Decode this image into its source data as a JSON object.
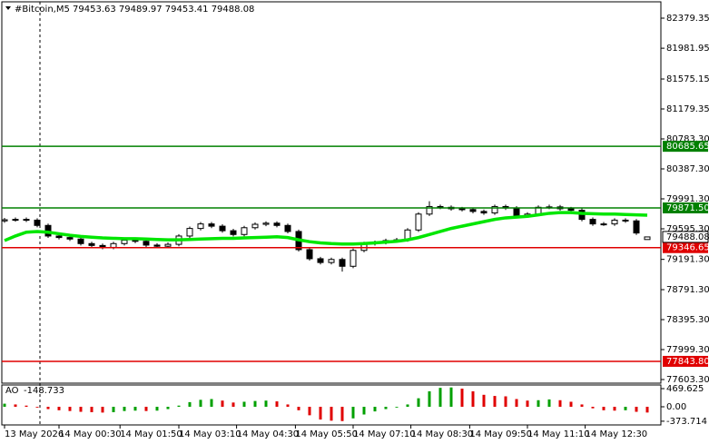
{
  "chart_data": [
    {
      "type": "candlestick",
      "title": "#Bitcoin,M5 79453.63 79489.97 79453.41 79488.08",
      "open": [
        79700,
        79715,
        79720,
        79710,
        79640,
        79500,
        79480,
        79460,
        79400,
        79375,
        79350,
        79400,
        79445,
        79430,
        79380,
        79365,
        79390,
        79500,
        79600,
        79660,
        79630,
        79570,
        79520,
        79610,
        79655,
        79670,
        79640,
        79560,
        79320,
        79200,
        79150,
        79190,
        79100,
        79310,
        79400,
        79415,
        79440,
        79450,
        79580,
        79790,
        79890,
        79880,
        79860,
        79850,
        79825,
        79805,
        79890,
        79870,
        79770,
        79790,
        79880,
        79885,
        79860,
        79840,
        79720,
        79660,
        79660,
        79710,
        79700,
        79453.63
      ],
      "high": [
        79740,
        79745,
        79745,
        79735,
        79665,
        79525,
        79505,
        79485,
        79425,
        79400,
        79425,
        79470,
        79470,
        79455,
        79405,
        79415,
        79525,
        79625,
        79685,
        79685,
        79655,
        79595,
        79635,
        79680,
        79695,
        79695,
        79665,
        79585,
        79345,
        79225,
        79215,
        79215,
        79335,
        79425,
        79440,
        79465,
        79475,
        79605,
        79815,
        79960,
        79915,
        79905,
        79885,
        79875,
        79850,
        79915,
        79915,
        79895,
        79815,
        79905,
        79915,
        79910,
        79885,
        79865,
        79745,
        79685,
        79735,
        79735,
        79725,
        79489.97
      ],
      "low": [
        79675,
        79690,
        79685,
        79615,
        79475,
        79455,
        79435,
        79375,
        79350,
        79325,
        79325,
        79375,
        79405,
        79355,
        79340,
        79340,
        79365,
        79475,
        79575,
        79605,
        79545,
        79495,
        79495,
        79585,
        79630,
        79615,
        79535,
        79295,
        79175,
        79125,
        79125,
        79030,
        79075,
        79285,
        79375,
        79390,
        79415,
        79425,
        79555,
        79765,
        79855,
        79835,
        79825,
        79800,
        79780,
        79780,
        79845,
        79745,
        79745,
        79765,
        79855,
        79835,
        79815,
        79695,
        79635,
        79635,
        79635,
        79675,
        79515,
        79453.41
      ],
      "close": [
        79715,
        79720,
        79710,
        79640,
        79500,
        79480,
        79460,
        79400,
        79375,
        79350,
        79400,
        79445,
        79430,
        79380,
        79365,
        79390,
        79500,
        79600,
        79660,
        79630,
        79570,
        79520,
        79610,
        79655,
        79670,
        79640,
        79560,
        79320,
        79200,
        79150,
        79190,
        79100,
        79310,
        79400,
        79415,
        79440,
        79450,
        79580,
        79790,
        79890,
        79880,
        79860,
        79850,
        79825,
        79805,
        79890,
        79870,
        79770,
        79790,
        79880,
        79885,
        79860,
        79840,
        79720,
        79660,
        79660,
        79710,
        79700,
        79540,
        79488.08
      ],
      "color": "#000000",
      "ma": {
        "values": [
          79440,
          79500,
          79550,
          79560,
          79550,
          79530,
          79510,
          79495,
          79485,
          79475,
          79470,
          79465,
          79465,
          79460,
          79455,
          79450,
          79450,
          79455,
          79460,
          79465,
          79470,
          79470,
          79475,
          79480,
          79485,
          79490,
          79480,
          79450,
          79425,
          79410,
          79400,
          79395,
          79395,
          79400,
          79410,
          79420,
          79430,
          79450,
          79480,
          79520,
          79560,
          79600,
          79630,
          79660,
          79690,
          79720,
          79740,
          79750,
          79760,
          79780,
          79800,
          79810,
          79810,
          79800,
          79795,
          79790,
          79790,
          79785,
          79780,
          79775
        ],
        "color": "#00e600"
      },
      "levels": {
        "values": [
          80685.65,
          79871.5,
          79346.65,
          77843.8
        ],
        "value_labels": [
          "80685.65",
          "79871.50",
          "79346.65",
          "77843.80"
        ],
        "colors": [
          "#008000",
          "#008000",
          "#e00000",
          "#e00000"
        ]
      },
      "ylim": [
        77555.35,
        82619.35
      ],
      "yticks": [
        82379.35,
        81981.95,
        81575.15,
        81179.35,
        {
          "value": 80783.3,
          "label": "80783.30"
        },
        {
          "value": 80387.3,
          "label": "80387.30"
        },
        {
          "value": 79991.3,
          "label": "79991.30"
        },
        {
          "value": 79595.3,
          "label": "79595.30"
        },
        {
          "value": 79191.3,
          "label": "79191.30"
        },
        {
          "value": 78791.3,
          "label": "78791.30"
        },
        {
          "value": 78395.3,
          "label": "78395.30"
        },
        {
          "value": 77999.3,
          "label": "77999.30"
        },
        {
          "value": 77603.3,
          "label": "77603.30"
        }
      ],
      "xlim": [
        -0.25,
        60.25
      ],
      "xticks": [
        {
          "value": 0,
          "label": "13 May 2026"
        },
        {
          "value": 5,
          "label": "14 May 00:30"
        },
        {
          "value": 10.6,
          "label": "14 May 01:50"
        },
        {
          "value": 16,
          "label": "14 May 03:10"
        },
        {
          "value": 21.3,
          "label": "14 May 04:30"
        },
        {
          "value": 26.7,
          "label": "14 May 05:50"
        },
        {
          "value": 32,
          "label": "14 May 07:10"
        },
        {
          "value": 37.3,
          "label": "14 May 08:30"
        },
        {
          "value": 42.7,
          "label": "14 May 09:50"
        },
        {
          "value": 48,
          "label": "14 May 11:10"
        },
        {
          "value": 53.3,
          "label": "14 May 12:30"
        }
      ]
    },
    {
      "type": "bar",
      "name": "AO",
      "values": [
        80,
        60,
        30,
        -20,
        -60,
        -90,
        -110,
        -130,
        -140,
        -150,
        -140,
        -110,
        -100,
        -110,
        -100,
        -60,
        30,
        120,
        180,
        200,
        160,
        110,
        130,
        150,
        160,
        140,
        60,
        -90,
        -220,
        -330,
        -360,
        -370,
        -300,
        -200,
        -120,
        -60,
        -20,
        60,
        220,
        400,
        490,
        500,
        470,
        400,
        310,
        280,
        270,
        200,
        160,
        170,
        190,
        170,
        130,
        60,
        -40,
        -90,
        -100,
        -90,
        -130,
        -148.733
      ],
      "colors": {
        "up": "#00a000",
        "down": "#e00000"
      },
      "ylim": [
        -470,
        611
      ],
      "yticks": [
        469.625,
        {
          "value": 0,
          "label": "0.00"
        },
        -373.714
      ]
    }
  ]
}
